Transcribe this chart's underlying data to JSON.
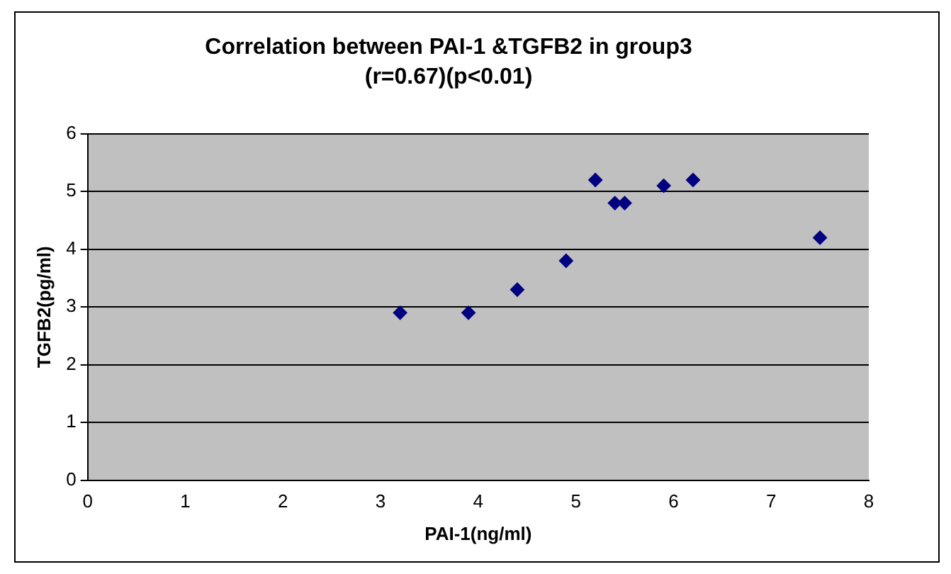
{
  "chart_data": {
    "type": "scatter",
    "title": "Correlation between PAI-1 &TGFB2 in group3",
    "subtitle": "(r=0.67)(p<0.01)",
    "xlabel": "PAI-1(ng/ml)",
    "ylabel": "TGFB2(pg/ml)",
    "x": [
      3.2,
      3.9,
      4.4,
      4.9,
      5.2,
      5.4,
      5.5,
      5.9,
      6.2,
      7.5
    ],
    "series": [
      {
        "color": "#000080",
        "values": [
          2.9,
          2.9,
          3.3,
          3.8,
          5.2,
          4.8,
          4.8,
          5.1,
          5.2,
          4.2
        ]
      }
    ],
    "xlim": [
      0,
      8
    ],
    "xticks": [
      0,
      1,
      2,
      3,
      4,
      5,
      6,
      7,
      8
    ],
    "ylim": [
      0,
      6
    ],
    "yticks": [
      0,
      1,
      2,
      3,
      4,
      5,
      6
    ],
    "grid": "y",
    "legend": false,
    "marker": "diamond"
  }
}
